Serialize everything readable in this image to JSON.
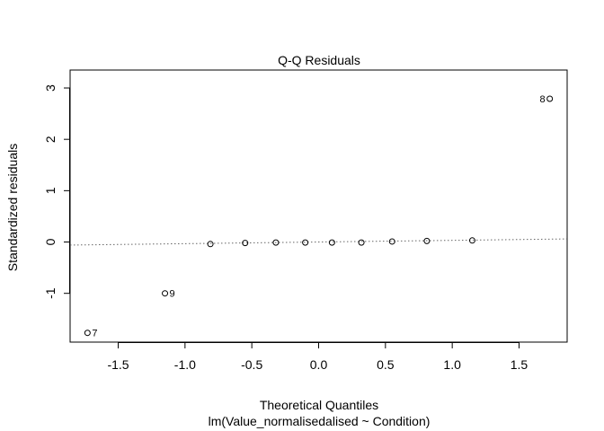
{
  "chart_data": {
    "type": "scatter",
    "title": "Q-Q Residuals",
    "xlabel": "Theoretical Quantiles",
    "subtitle": "lm(Value_normalisedalised ~ Condition)",
    "ylabel": "Standardized residuals",
    "xlim": [
      -1.86,
      1.86
    ],
    "ylim": [
      -1.95,
      3.35
    ],
    "x_ticks": [
      -1.5,
      -1.0,
      -0.5,
      0.0,
      0.5,
      1.0,
      1.5
    ],
    "x_tick_labels": [
      "-1.5",
      "-1.0",
      "-0.5",
      "0.0",
      "0.5",
      "1.0",
      "1.5"
    ],
    "y_ticks": [
      -1,
      0,
      1,
      2,
      3
    ],
    "y_tick_labels": [
      "-1",
      "0",
      "1",
      "2",
      "3"
    ],
    "points": [
      {
        "x": -1.73,
        "y": -1.77,
        "label": "7"
      },
      {
        "x": -1.15,
        "y": -1.0,
        "label": "9"
      },
      {
        "x": -0.81,
        "y": -0.04
      },
      {
        "x": -0.55,
        "y": -0.02
      },
      {
        "x": -0.32,
        "y": -0.01
      },
      {
        "x": -0.1,
        "y": -0.01
      },
      {
        "x": 0.1,
        "y": -0.01
      },
      {
        "x": 0.32,
        "y": -0.01
      },
      {
        "x": 0.55,
        "y": 0.01
      },
      {
        "x": 0.81,
        "y": 0.02
      },
      {
        "x": 1.15,
        "y": 0.03
      },
      {
        "x": 1.73,
        "y": 2.79,
        "label": "8"
      }
    ],
    "reference_line": {
      "x1": -1.86,
      "y1": -0.06,
      "x2": 1.86,
      "y2": 0.06,
      "style": "dotted",
      "color": "#666666"
    },
    "grid": false,
    "legend": "none"
  }
}
